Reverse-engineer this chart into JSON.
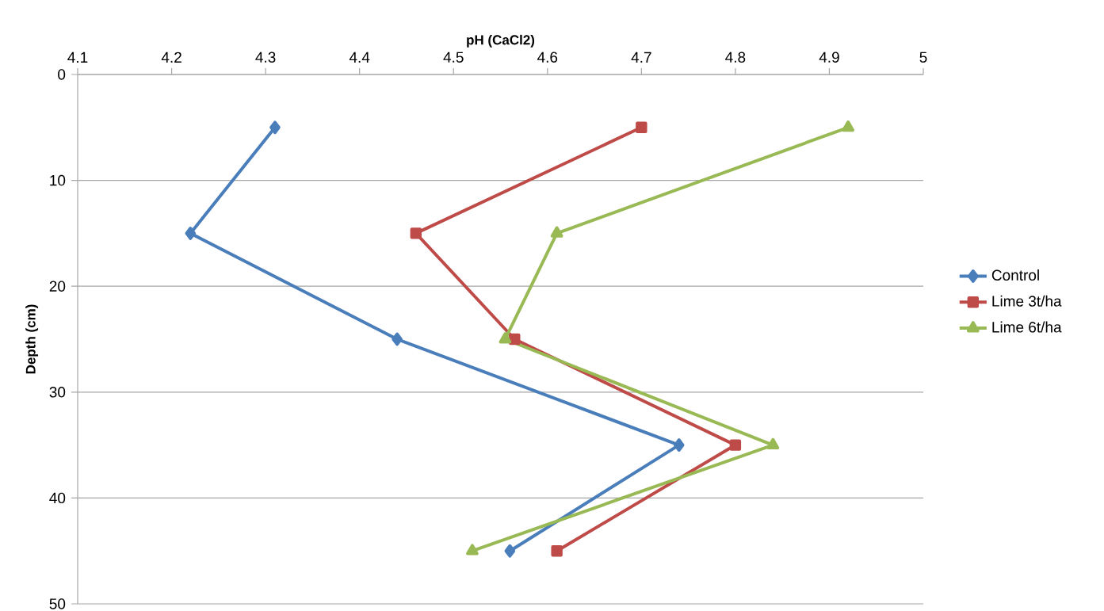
{
  "chart_data": {
    "type": "line",
    "xlabel": "pH (CaCl2)",
    "ylabel": "Depth (cm)",
    "xlim": [
      4.1,
      5
    ],
    "xticks": [
      4.1,
      4.2,
      4.3,
      4.4,
      4.5,
      4.6,
      4.7,
      4.8,
      4.9,
      5
    ],
    "ylim": [
      50,
      0
    ],
    "yticks": [
      0,
      10,
      20,
      30,
      40,
      50
    ],
    "grid": "y",
    "legend": "right",
    "line_style": "solid",
    "series": [
      {
        "name": "Control",
        "color": "#4a7ebb",
        "marker": "diamond",
        "x": [
          4.31,
          4.22,
          4.44,
          4.74,
          4.56
        ],
        "values": [
          5,
          15,
          25,
          35,
          45
        ]
      },
      {
        "name": "Lime 3t/ha",
        "color": "#be4b48",
        "marker": "square",
        "x": [
          4.7,
          4.46,
          4.565,
          4.8,
          4.61
        ],
        "values": [
          5,
          15,
          25,
          35,
          45
        ]
      },
      {
        "name": "Lime 6t/ha",
        "color": "#98b954",
        "marker": "triangle",
        "x": [
          4.92,
          4.61,
          4.555,
          4.84,
          4.52
        ],
        "values": [
          5,
          15,
          25,
          35,
          45
        ]
      }
    ]
  }
}
